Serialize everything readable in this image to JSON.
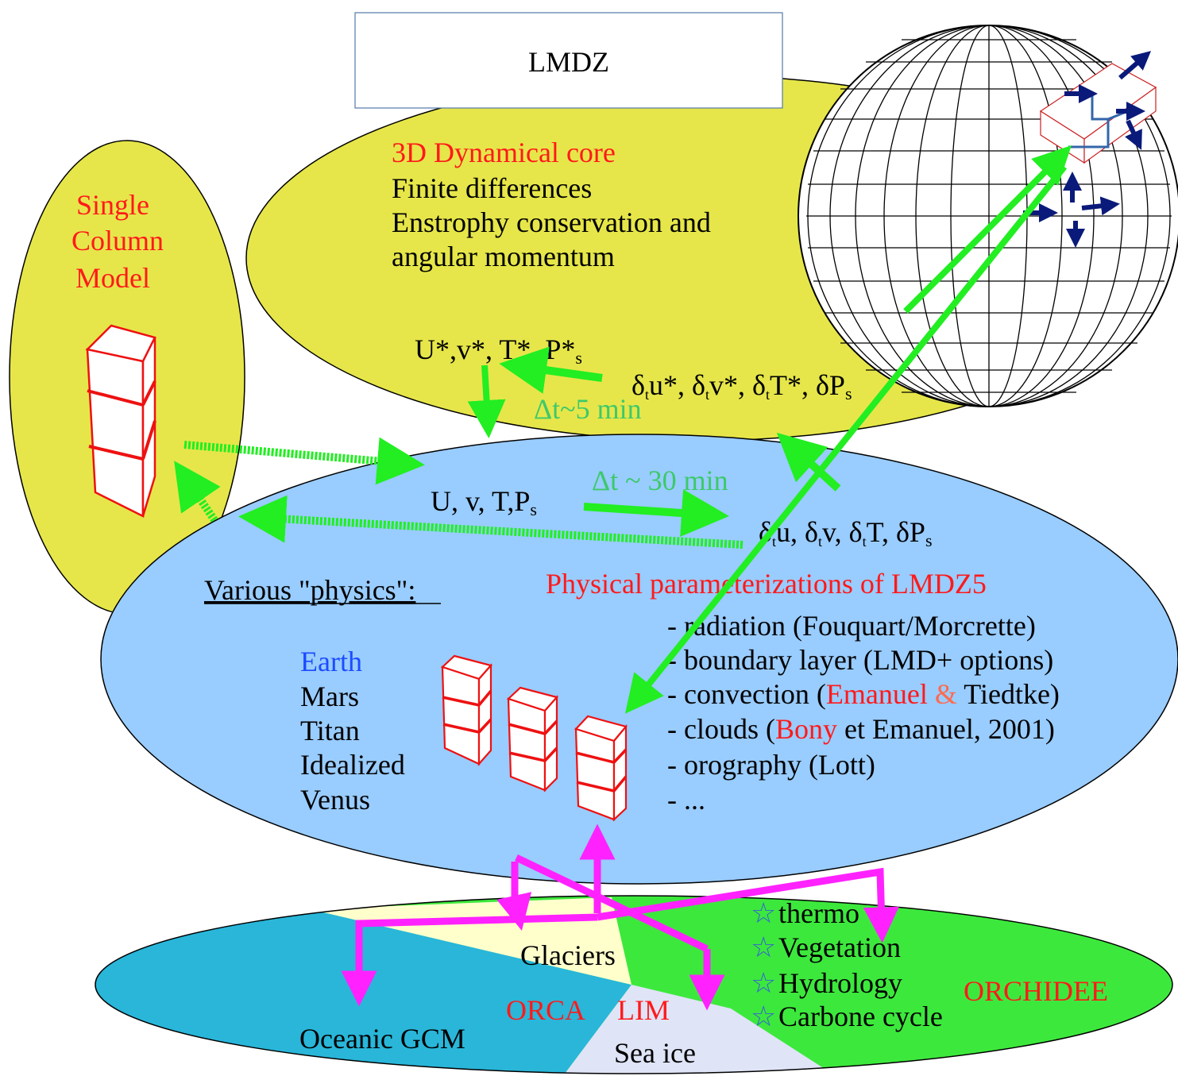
{
  "colors": {
    "dyn_core_fill": "#e6e64a",
    "physics_fill": "#99ccff",
    "scm_fill": "#e6e64a",
    "ocean_fill": "#29b6d9",
    "glacier_fill": "#ffffcc",
    "seaice_fill": "#dfe4f7",
    "land_fill": "#3de83d",
    "arrow_green": "#22ee22",
    "arrow_magenta": "#ff22ff",
    "arrow_navy": "#0a1a7a",
    "highlight_red": "#ff1a1a"
  },
  "title": "LMDZ",
  "dyn_core": {
    "heading": "3D Dynamical core",
    "lines": [
      "Finite differences",
      "Enstrophy conservation and",
      "angular momentum"
    ]
  },
  "scm": {
    "lines": [
      "Single",
      "Column",
      "Model"
    ]
  },
  "vars": {
    "star_base": "U*,v*, T*, P*",
    "star_sub": "s",
    "star_tend": {
      "d1": "δ",
      "t1": "t",
      "u": "u*, ",
      "d2": "δ",
      "t2": "t",
      "v": "v*, ",
      "d3": "δ",
      "t3": "t",
      "T": "T*, ",
      "d4": "δP",
      "s4": "s"
    },
    "base": "U, v, T,P",
    "base_sub": "s",
    "tend": {
      "d1": "δ",
      "t1": "t",
      "u": "u, ",
      "d2": "δ",
      "t2": "t",
      "v": "v, ",
      "d3": "δ",
      "t3": "t",
      "T": "T, ",
      "d4": "δP",
      "s4": "s"
    },
    "dt_dyn": "Δt~5 min",
    "dt_phys": "Δt ~  30 min"
  },
  "physics": {
    "heading": "Various \"physics\":",
    "planets": [
      "Earth",
      "Mars",
      "Titan",
      "Idealized",
      "Venus"
    ],
    "param_title": "Physical parameterizations of LMDZ5",
    "params": {
      "radiation": "- radiation (Fouquart/Morcrette)",
      "boundary": "- boundary layer (LMD+ options)",
      "conv_prefix": "- convection (",
      "conv_emanuel": "Emanuel",
      "conv_amp": " & ",
      "conv_suffix": "Tiedtke)",
      "clouds_prefix": "- clouds (",
      "clouds_bony": "Bony",
      "clouds_suffix": " et Emanuel, 2001)",
      "orography": "- orography (Lott)",
      "more": "- ..."
    }
  },
  "surface": {
    "glaciers": "Glaciers",
    "orca": "ORCA",
    "lim": "LIM",
    "ocean_gcm": "Oceanic GCM",
    "sea_ice": "Sea ice",
    "orchidee": "ORCHIDEE",
    "land_items": [
      "thermo",
      "Vegetation",
      "Hydrology",
      "Carbone cycle"
    ]
  }
}
